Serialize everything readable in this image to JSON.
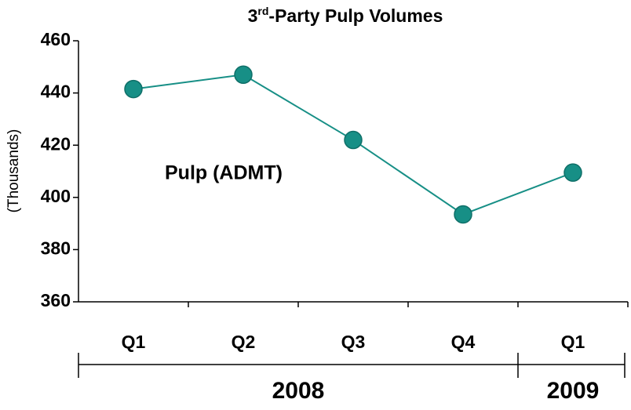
{
  "chart_data": {
    "type": "line",
    "title_parts": [
      "3",
      "rd",
      "-Party Pulp Volumes"
    ],
    "y_label": "(Thousands)",
    "categories": [
      "Q1",
      "Q2",
      "Q3",
      "Q4",
      "Q1"
    ],
    "groups": [
      {
        "label": "2008",
        "count": 4
      },
      {
        "label": "2009",
        "count": 1
      }
    ],
    "series": [
      {
        "name": "Pulp (ADMT)",
        "color": "#178f86",
        "values": [
          441.5,
          447,
          422,
          393.5,
          409.5
        ]
      }
    ],
    "ylim": [
      360,
      460
    ],
    "yticks": [
      360,
      380,
      400,
      420,
      440,
      460
    ]
  }
}
